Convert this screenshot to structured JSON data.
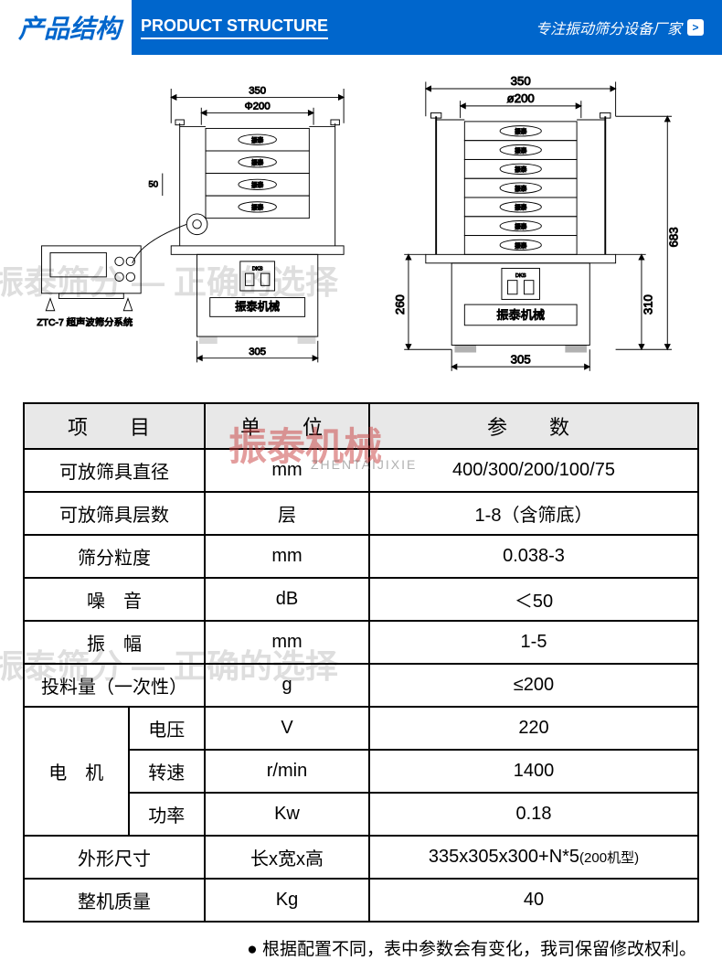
{
  "header": {
    "title_cn": "产品结构",
    "title_en": "PRODUCT STRUCTURE",
    "tag": "专注振动筛分设备厂家"
  },
  "diagram": {
    "left": {
      "control_label": "ZTC-7 超声波筛分系统",
      "machine_label": "振泰机械",
      "dims": {
        "width_top": "350",
        "diameter": "Φ200",
        "base_width": "305",
        "side_small": "50"
      },
      "layers": 4
    },
    "right": {
      "machine_label": "振泰机械",
      "dims": {
        "width_top": "350",
        "diameter": "ø200",
        "base_width": "305",
        "total_h": "683",
        "upper_h": "260",
        "lower_h": "310"
      },
      "layers": 7
    },
    "stroke": "#000000",
    "fill": "#ffffff"
  },
  "table": {
    "headers": {
      "item": "项　目",
      "unit": "单　位",
      "param": "参　数"
    },
    "rows": [
      {
        "item": "可放筛具直径",
        "unit": "mm",
        "param": "400/300/200/100/75"
      },
      {
        "item": "可放筛具层数",
        "unit": "层",
        "param": "1-8（含筛底）"
      },
      {
        "item": "筛分粒度",
        "unit": "mm",
        "param": "0.038-3"
      },
      {
        "item": "噪　音",
        "unit": "dB",
        "param": "＜50"
      },
      {
        "item": "振　幅",
        "unit": "mm",
        "param": "1-5"
      },
      {
        "item": "投料量（一次性）",
        "unit": "g",
        "param": "≤200"
      }
    ],
    "motor_group": {
      "label": "电　机",
      "rows": [
        {
          "item": "电压",
          "unit": "V",
          "param": "220"
        },
        {
          "item": "转速",
          "unit": "r/min",
          "param": "1400"
        },
        {
          "item": "功率",
          "unit": "Kw",
          "param": "0.18"
        }
      ]
    },
    "tail_rows": [
      {
        "item": "外形尺寸",
        "unit": "长x宽x高",
        "param": "335x305x300+N*5",
        "param_suffix": "(200机型)"
      },
      {
        "item": "整机质量",
        "unit": "Kg",
        "param": "40"
      }
    ]
  },
  "footnote": "根据配置不同，表中参数会有变化，我司保留修改权利。",
  "watermarks": {
    "w1": "振泰筛分 — 正确的选择",
    "w2": "振泰筛分 — 正确的选择",
    "logo_text": "振泰机械",
    "logo_sub": "ZHENTAIJIXIE"
  },
  "colors": {
    "primary": "#0066cc",
    "table_header_bg": "#e8e8e8",
    "border": "#000000"
  }
}
